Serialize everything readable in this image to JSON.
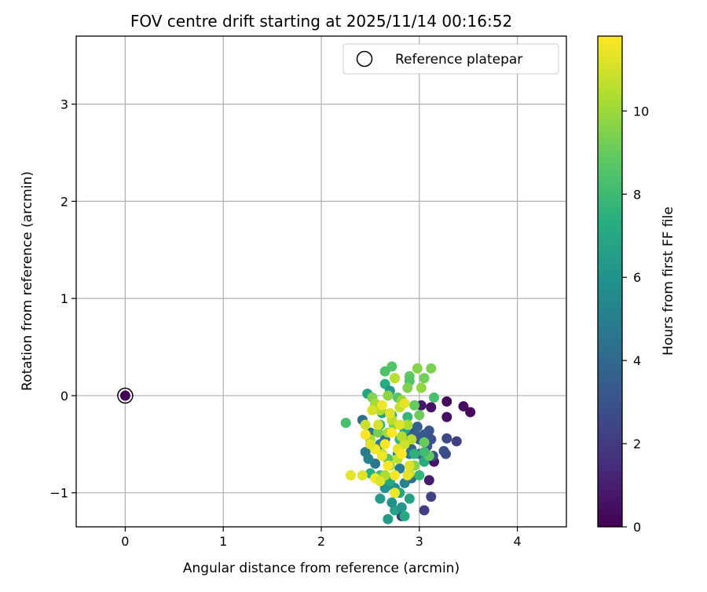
{
  "chart_data": {
    "type": "scatter",
    "title": "FOV centre drift starting at 2025/11/14 00:16:52",
    "xlabel": "Angular distance from reference (arcmin)",
    "ylabel": "Rotation from reference (arcmin)",
    "xlim": [
      -0.5,
      4.5
    ],
    "ylim": [
      -1.35,
      3.7
    ],
    "xticks": [
      0,
      1,
      2,
      3,
      4
    ],
    "xtick_labels": [
      "0",
      "1",
      "2",
      "3",
      "4"
    ],
    "yticks": [
      -1,
      0,
      1,
      2,
      3
    ],
    "ytick_labels": [
      "−1",
      "0",
      "1",
      "2",
      "3"
    ],
    "grid": true,
    "legend": {
      "position": "top-right",
      "entries": [
        "Reference platepar"
      ]
    },
    "reference_point": {
      "x": 0,
      "y": 0,
      "label": "Reference platepar"
    },
    "colorbar": {
      "label": "Hours from first FF file",
      "range": [
        0,
        11.8
      ],
      "ticks": [
        0,
        2,
        4,
        6,
        8,
        10
      ],
      "tick_labels": [
        "0",
        "2",
        "4",
        "6",
        "8",
        "10"
      ],
      "colormap": "viridis"
    },
    "points": [
      {
        "x": 3.28,
        "y": -0.06,
        "h": 0.3
      },
      {
        "x": 3.45,
        "y": -0.11,
        "h": 0.4
      },
      {
        "x": 3.52,
        "y": -0.17,
        "h": 0.3
      },
      {
        "x": 3.28,
        "y": -0.22,
        "h": 0.5
      },
      {
        "x": 3.15,
        "y": -0.68,
        "h": 0.7
      },
      {
        "x": 3.1,
        "y": -0.87,
        "h": 0.9
      },
      {
        "x": 3.12,
        "y": -0.12,
        "h": 0.6
      },
      {
        "x": 3.02,
        "y": -0.1,
        "h": 0.8
      },
      {
        "x": 3.38,
        "y": -0.47,
        "h": 2.2
      },
      {
        "x": 3.28,
        "y": -0.44,
        "h": 2.6
      },
      {
        "x": 3.12,
        "y": -1.04,
        "h": 2.3
      },
      {
        "x": 3.05,
        "y": -1.18,
        "h": 2.2
      },
      {
        "x": 3.25,
        "y": -0.57,
        "h": 3.0
      },
      {
        "x": 3.27,
        "y": -0.6,
        "h": 2.8
      },
      {
        "x": 3.14,
        "y": -0.62,
        "h": 2.7
      },
      {
        "x": 2.82,
        "y": -1.24,
        "h": 2.0
      },
      {
        "x": 3.1,
        "y": -0.36,
        "h": 3.1
      },
      {
        "x": 3.05,
        "y": -0.4,
        "h": 3.3
      },
      {
        "x": 3.0,
        "y": -0.45,
        "h": 3.4
      },
      {
        "x": 2.95,
        "y": -0.38,
        "h": 3.5
      },
      {
        "x": 3.08,
        "y": -0.52,
        "h": 3.2
      },
      {
        "x": 3.0,
        "y": -0.6,
        "h": 3.6
      },
      {
        "x": 2.92,
        "y": -0.55,
        "h": 3.8
      },
      {
        "x": 2.98,
        "y": -0.32,
        "h": 3.7
      },
      {
        "x": 2.88,
        "y": -0.42,
        "h": 3.9
      },
      {
        "x": 3.12,
        "y": -0.45,
        "h": 2.9
      },
      {
        "x": 2.42,
        "y": -0.25,
        "h": 4.2
      },
      {
        "x": 2.5,
        "y": -0.38,
        "h": 4.5
      },
      {
        "x": 2.45,
        "y": -0.58,
        "h": 4.8
      },
      {
        "x": 2.55,
        "y": -0.7,
        "h": 4.6
      },
      {
        "x": 2.6,
        "y": -0.5,
        "h": 5.0
      },
      {
        "x": 2.48,
        "y": -0.65,
        "h": 5.2
      },
      {
        "x": 2.7,
        "y": -0.9,
        "h": 5.5
      },
      {
        "x": 2.75,
        "y": -0.95,
        "h": 5.8
      },
      {
        "x": 2.85,
        "y": -0.9,
        "h": 5.3
      },
      {
        "x": 2.8,
        "y": -0.75,
        "h": 4.9
      },
      {
        "x": 2.65,
        "y": -0.45,
        "h": 4.4
      },
      {
        "x": 2.9,
        "y": -0.6,
        "h": 4.7
      },
      {
        "x": 2.92,
        "y": -0.85,
        "h": 4.3
      },
      {
        "x": 2.78,
        "y": -0.6,
        "h": 5.1
      },
      {
        "x": 2.68,
        "y": -1.27,
        "h": 6.5
      },
      {
        "x": 2.75,
        "y": -1.18,
        "h": 6.8
      },
      {
        "x": 2.82,
        "y": -1.15,
        "h": 6.2
      },
      {
        "x": 2.72,
        "y": -1.1,
        "h": 6.0
      },
      {
        "x": 2.6,
        "y": -1.06,
        "h": 6.4
      },
      {
        "x": 2.9,
        "y": -1.06,
        "h": 6.7
      },
      {
        "x": 2.65,
        "y": -0.95,
        "h": 6.1
      },
      {
        "x": 2.8,
        "y": -1.0,
        "h": 6.9
      },
      {
        "x": 2.7,
        "y": -0.88,
        "h": 7.0
      },
      {
        "x": 2.85,
        "y": -1.24,
        "h": 7.1
      },
      {
        "x": 2.47,
        "y": 0.02,
        "h": 6.9
      },
      {
        "x": 2.55,
        "y": -0.1,
        "h": 6.6
      },
      {
        "x": 2.65,
        "y": 0.12,
        "h": 7.2
      },
      {
        "x": 2.7,
        "y": 0.05,
        "h": 6.3
      },
      {
        "x": 2.6,
        "y": -0.3,
        "h": 7.4
      },
      {
        "x": 2.72,
        "y": -0.2,
        "h": 7.6
      },
      {
        "x": 2.88,
        "y": -0.22,
        "h": 7.8
      },
      {
        "x": 2.95,
        "y": -0.6,
        "h": 7.5
      },
      {
        "x": 3.0,
        "y": -0.82,
        "h": 7.7
      },
      {
        "x": 2.5,
        "y": -0.8,
        "h": 7.3
      },
      {
        "x": 2.8,
        "y": -0.45,
        "h": 7.9
      },
      {
        "x": 2.62,
        "y": -0.18,
        "h": 6.8
      },
      {
        "x": 3.05,
        "y": -0.68,
        "h": 7.2
      },
      {
        "x": 2.85,
        "y": -0.35,
        "h": 7.0
      },
      {
        "x": 2.25,
        "y": -0.28,
        "h": 8.2
      },
      {
        "x": 2.65,
        "y": 0.25,
        "h": 8.4
      },
      {
        "x": 2.72,
        "y": 0.3,
        "h": 8.6
      },
      {
        "x": 2.9,
        "y": 0.2,
        "h": 8.8
      },
      {
        "x": 2.9,
        "y": 0.15,
        "h": 8.5
      },
      {
        "x": 3.15,
        "y": -0.02,
        "h": 8.3
      },
      {
        "x": 3.1,
        "y": -0.62,
        "h": 8.9
      },
      {
        "x": 3.05,
        "y": -0.58,
        "h": 8.1
      },
      {
        "x": 2.78,
        "y": -0.02,
        "h": 8.7
      },
      {
        "x": 2.6,
        "y": -0.82,
        "h": 8.0
      },
      {
        "x": 2.68,
        "y": -0.65,
        "h": 8.6
      },
      {
        "x": 2.95,
        "y": -0.1,
        "h": 8.9
      },
      {
        "x": 2.55,
        "y": -0.55,
        "h": 8.4
      },
      {
        "x": 2.98,
        "y": 0.28,
        "h": 9.6
      },
      {
        "x": 3.12,
        "y": 0.28,
        "h": 9.4
      },
      {
        "x": 3.05,
        "y": 0.18,
        "h": 9.2
      },
      {
        "x": 3.02,
        "y": 0.08,
        "h": 9.8
      },
      {
        "x": 2.88,
        "y": 0.08,
        "h": 9.5
      },
      {
        "x": 2.75,
        "y": 0.18,
        "h": 9.3
      },
      {
        "x": 2.68,
        "y": 0.0,
        "h": 9.7
      },
      {
        "x": 2.82,
        "y": -0.05,
        "h": 9.9
      },
      {
        "x": 3.0,
        "y": -0.2,
        "h": 9.1
      },
      {
        "x": 3.05,
        "y": -0.48,
        "h": 9.0
      },
      {
        "x": 2.95,
        "y": -0.72,
        "h": 9.6
      },
      {
        "x": 2.58,
        "y": -0.38,
        "h": 9.3
      },
      {
        "x": 2.52,
        "y": -0.02,
        "h": 9.5
      },
      {
        "x": 2.74,
        "y": -0.3,
        "h": 9.2
      },
      {
        "x": 2.55,
        "y": -0.08,
        "h": 10.2
      },
      {
        "x": 2.6,
        "y": -0.15,
        "h": 10.4
      },
      {
        "x": 2.72,
        "y": -0.25,
        "h": 10.6
      },
      {
        "x": 2.8,
        "y": -0.12,
        "h": 10.8
      },
      {
        "x": 2.88,
        "y": -0.3,
        "h": 10.3
      },
      {
        "x": 2.92,
        "y": -0.45,
        "h": 10.5
      },
      {
        "x": 2.85,
        "y": -0.5,
        "h": 10.9
      },
      {
        "x": 2.78,
        "y": -0.65,
        "h": 10.7
      },
      {
        "x": 2.7,
        "y": -0.72,
        "h": 10.1
      },
      {
        "x": 2.62,
        "y": -0.6,
        "h": 10.4
      },
      {
        "x": 2.5,
        "y": -0.45,
        "h": 10.2
      },
      {
        "x": 2.45,
        "y": -0.3,
        "h": 10.8
      },
      {
        "x": 2.75,
        "y": 0.18,
        "h": 10.6
      },
      {
        "x": 2.65,
        "y": -0.82,
        "h": 10.3
      },
      {
        "x": 2.9,
        "y": -0.8,
        "h": 10.9
      },
      {
        "x": 2.82,
        "y": -0.42,
        "h": 10.5
      },
      {
        "x": 2.68,
        "y": -0.38,
        "h": 10.1
      },
      {
        "x": 2.3,
        "y": -0.82,
        "h": 11.4
      },
      {
        "x": 2.42,
        "y": -0.82,
        "h": 11.3
      },
      {
        "x": 2.55,
        "y": -0.85,
        "h": 11.6
      },
      {
        "x": 2.6,
        "y": -0.88,
        "h": 11.2
      },
      {
        "x": 2.75,
        "y": -1.0,
        "h": 11.5
      },
      {
        "x": 2.45,
        "y": -0.4,
        "h": 11.7
      },
      {
        "x": 2.58,
        "y": -0.3,
        "h": 11.1
      },
      {
        "x": 2.65,
        "y": -0.5,
        "h": 11.6
      },
      {
        "x": 2.72,
        "y": -0.38,
        "h": 11.8
      },
      {
        "x": 2.7,
        "y": -0.18,
        "h": 11.3
      },
      {
        "x": 2.62,
        "y": -0.62,
        "h": 11.5
      },
      {
        "x": 2.78,
        "y": -0.55,
        "h": 11.4
      },
      {
        "x": 2.8,
        "y": -0.3,
        "h": 11.2
      },
      {
        "x": 2.68,
        "y": -0.72,
        "h": 11.7
      },
      {
        "x": 2.55,
        "y": -0.55,
        "h": 11.6
      },
      {
        "x": 2.5,
        "y": -0.5,
        "h": 11.3
      },
      {
        "x": 2.52,
        "y": -0.15,
        "h": 11.1
      },
      {
        "x": 2.62,
        "y": -0.1,
        "h": 11.5
      },
      {
        "x": 2.85,
        "y": -0.08,
        "h": 11.4
      },
      {
        "x": 2.82,
        "y": -0.6,
        "h": 11.8
      },
      {
        "x": 2.9,
        "y": -0.72,
        "h": 11.2
      },
      {
        "x": 2.75,
        "y": -0.82,
        "h": 11.6
      },
      {
        "x": 2.88,
        "y": -0.82,
        "h": 11.3
      }
    ]
  }
}
